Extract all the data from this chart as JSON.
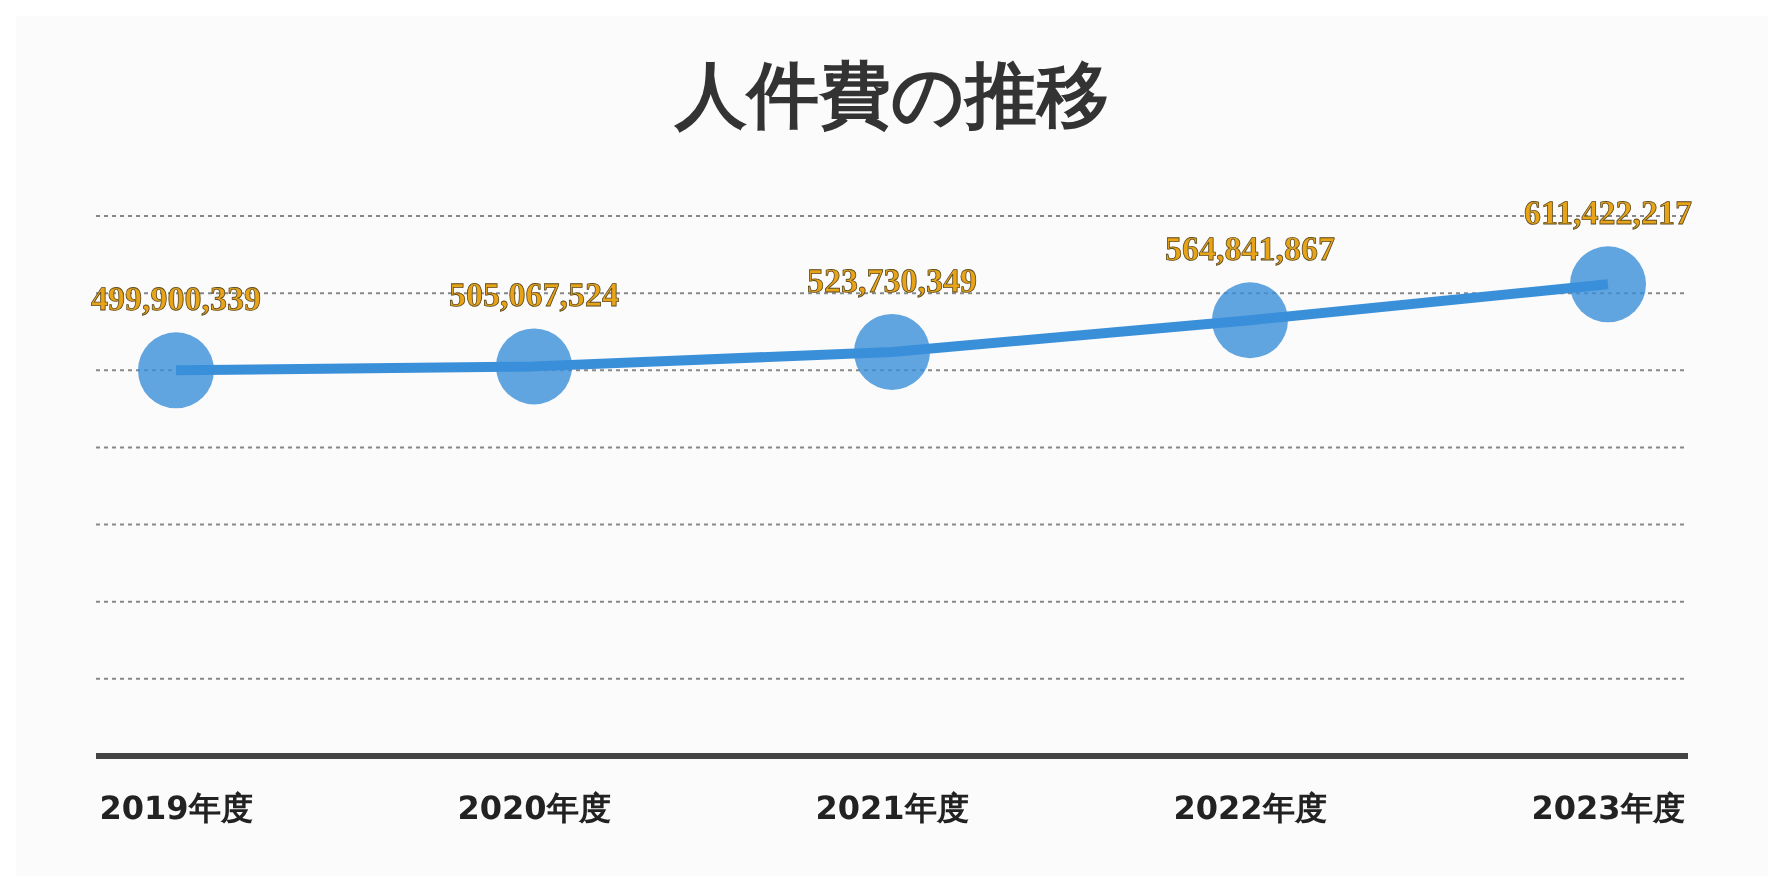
{
  "chart_data": {
    "type": "line",
    "title": "人件費の推移",
    "categories": [
      "2019年度",
      "2020年度",
      "2021年度",
      "2022年度",
      "2023年度"
    ],
    "series": [
      {
        "color": "#3a8fd9",
        "values": [
          499900339,
          505067524,
          523730349,
          564841867,
          611422217
        ],
        "value_labels": [
          "499,900,339",
          "505,067,524",
          "523,730,349",
          "564,841,867",
          "611,422,217"
        ]
      }
    ],
    "ylim": [
      0,
      700000000
    ],
    "yticks": [
      {
        "value": 0,
        "label": null
      },
      {
        "value": 100000000,
        "label": null
      },
      {
        "value": 200000000,
        "label": null
      },
      {
        "value": 300000000,
        "label": null
      },
      {
        "value": 400000000,
        "label": null
      },
      {
        "value": 500000000,
        "label": null
      },
      {
        "value": 600000000,
        "label": null
      },
      {
        "value": 700000000,
        "label": null
      }
    ],
    "tick_labels": "x",
    "grid": "y",
    "marker": "circle",
    "line_style": "solid"
  }
}
